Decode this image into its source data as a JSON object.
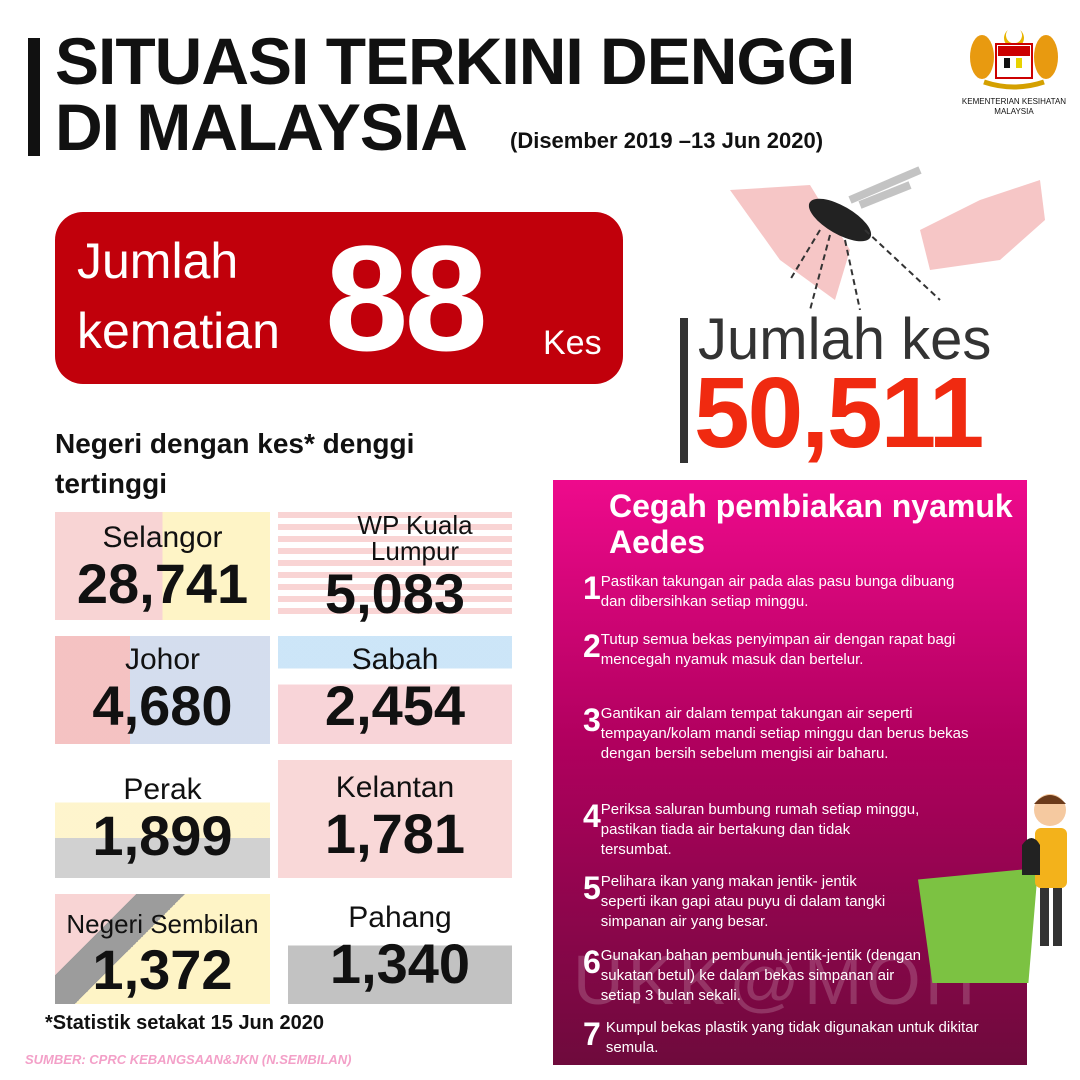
{
  "header": {
    "title_line1": "SITUASI TERKINI DENGGI",
    "title_line2": "DI MALAYSIA",
    "date_range": "(Disember 2019 –13 Jun 2020)"
  },
  "logo": {
    "caption": "KEMENTERIAN KESIHATAN MALAYSIA"
  },
  "deaths": {
    "label_line1": "Jumlah",
    "label_line2": "kematian",
    "value": "88",
    "unit": "Kes",
    "bg_color": "#c1000b"
  },
  "total_cases": {
    "label": "Jumlah kes",
    "value": "50,511",
    "value_color": "#f02a10"
  },
  "states": {
    "title": "Negeri dengan kes* denggi tertinggi",
    "items": [
      {
        "name": "Selangor",
        "value": "28,741"
      },
      {
        "name": "WP Kuala Lumpur",
        "value": "5,083"
      },
      {
        "name": "Johor",
        "value": "4,680"
      },
      {
        "name": "Sabah",
        "value": "2,454"
      },
      {
        "name": "Perak",
        "value": "1,899"
      },
      {
        "name": "Kelantan",
        "value": "1,781"
      },
      {
        "name": "Negeri Sembilan",
        "value": "1,372"
      },
      {
        "name": "Pahang",
        "value": "1,340"
      }
    ]
  },
  "footnote": "*Statistik setakat 15 Jun 2020",
  "source": "SUMBER: CPRC KEBANGSAAN&JKN (N.SEMBILAN)",
  "prevention": {
    "title": "Cegah pembiakan nyamuk Aedes",
    "watermark": "UKK@MOH",
    "tips": [
      {
        "n": "1",
        "text": "Pastikan takungan air pada alas pasu bunga dibuang dan dibersihkan setiap minggu."
      },
      {
        "n": "2",
        "text": "Tutup semua bekas penyimpan air dengan rapat bagi mencegah nyamuk masuk dan bertelur."
      },
      {
        "n": "3",
        "text": "Gantikan air dalam tempat takungan air seperti tempayan/kolam mandi setiap minggu dan berus bekas dengan bersih sebelum mengisi air baharu."
      },
      {
        "n": "4",
        "text": "Periksa saluran bumbung rumah setiap minggu, pastikan tiada air bertakung dan tidak tersumbat."
      },
      {
        "n": "5",
        "text": "Pelihara ikan yang makan jentik- jentik seperti ikan gapi atau puyu di dalam tangki simpanan air yang besar."
      },
      {
        "n": "6",
        "text": "Gunakan bahan pembunuh jentik-jentik (dengan sukatan betul) ke dalam bekas simpanan air setiap 3 bulan sekali."
      },
      {
        "n": "7",
        "text": "Kumpul bekas plastik yang tidak digunakan untuk dikitar semula."
      }
    ]
  }
}
